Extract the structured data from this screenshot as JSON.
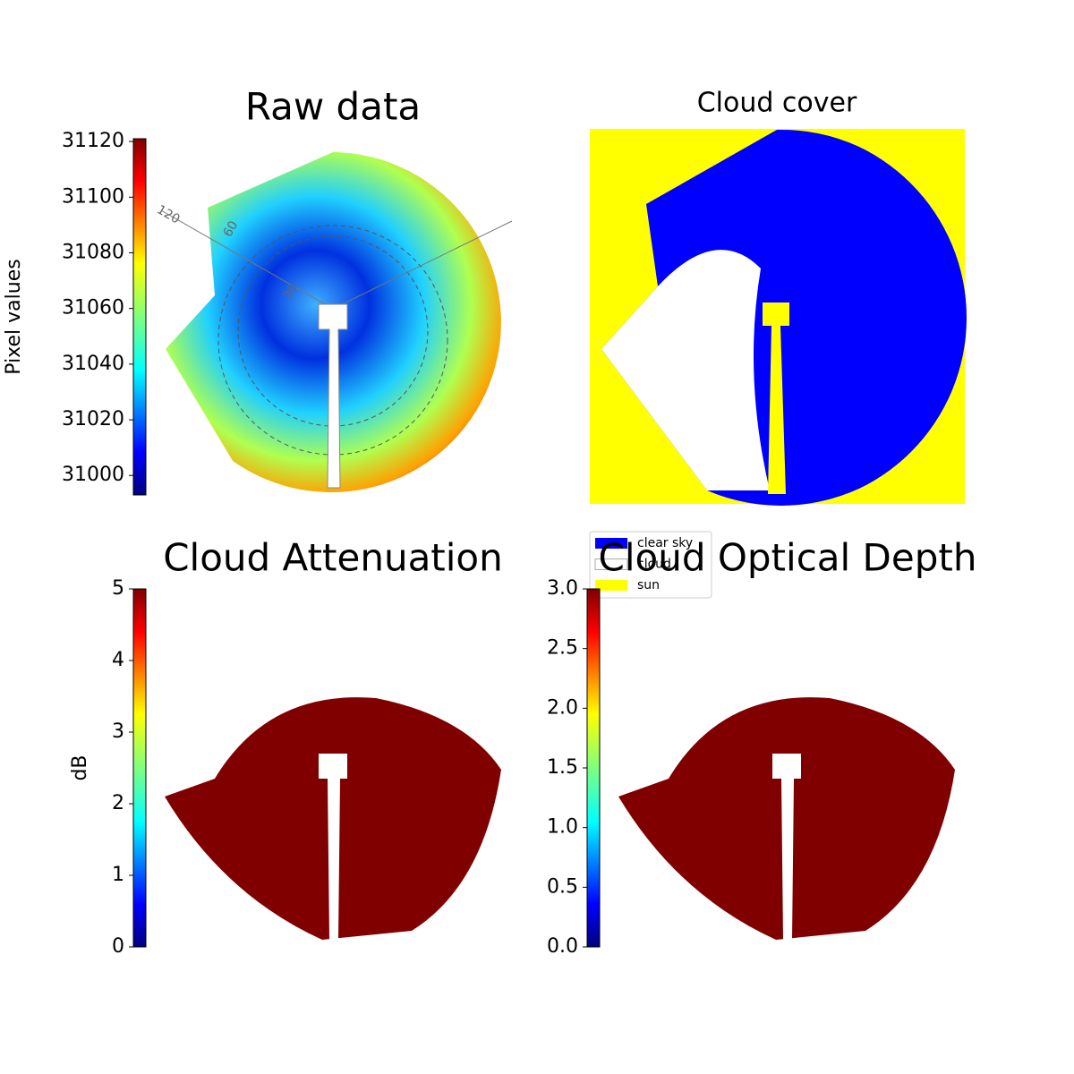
{
  "chart_data": [
    {
      "type": "image",
      "title": "Raw data",
      "colorbar_label": "Pixel values",
      "colormap": "jet",
      "ylim": [
        30993,
        31121
      ],
      "yticks": [
        31000,
        31020,
        31040,
        31060,
        31080,
        31100,
        31120
      ],
      "annotations": [
        "120",
        "60",
        "30"
      ]
    },
    {
      "type": "mask",
      "title": "Cloud cover",
      "legend": [
        {
          "name": "clear sky",
          "color": "#0000ff"
        },
        {
          "name": "cloud",
          "color": "#ffffff"
        },
        {
          "name": "sun",
          "color": "#ffff00"
        }
      ]
    },
    {
      "type": "image",
      "title": "Cloud Attenuation",
      "colorbar_label": "dB",
      "colormap": "jet",
      "color": "#800000",
      "ylim": [
        0,
        5
      ],
      "yticks": [
        0,
        1,
        2,
        3,
        4,
        5
      ]
    },
    {
      "type": "image",
      "title": "Cloud Optical Depth",
      "colormap": "jet",
      "color": "#800000",
      "ylim": [
        0,
        3
      ],
      "yticks": [
        {
          "value": 0,
          "label": "0.0"
        },
        0.5,
        {
          "value": 1,
          "label": "1.0"
        },
        1.5,
        {
          "value": 2,
          "label": "2.0"
        },
        2.5,
        {
          "value": 3,
          "label": "3.0"
        }
      ]
    }
  ]
}
